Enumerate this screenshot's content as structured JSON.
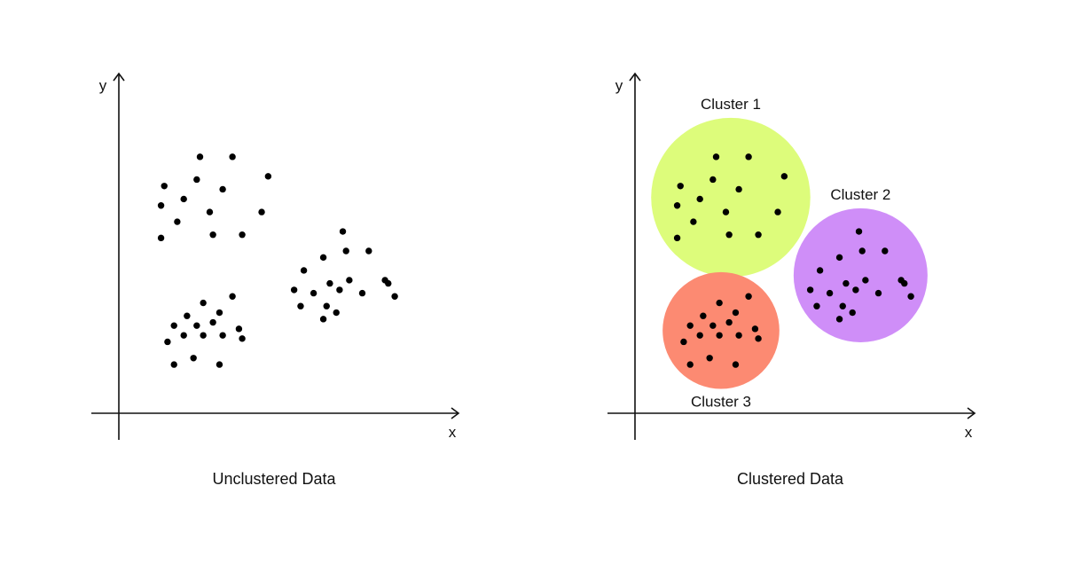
{
  "chart_data": [
    {
      "type": "scatter",
      "title": "Unclustered Data",
      "xlabel": "x",
      "ylabel": "y",
      "grid": false,
      "xlim": [
        0,
        100
      ],
      "ylim": [
        0,
        100
      ],
      "series": [
        {
          "points": [
            [
              25,
              79
            ],
            [
              35,
              79
            ],
            [
              14,
              70
            ],
            [
              24,
              72
            ],
            [
              32,
              69
            ],
            [
              46,
              73
            ],
            [
              13,
              64
            ],
            [
              20,
              66
            ],
            [
              28,
              62
            ],
            [
              44,
              62
            ],
            [
              18,
              59
            ],
            [
              29,
              55
            ],
            [
              38,
              55
            ],
            [
              13,
              54
            ],
            [
              69,
              56
            ],
            [
              63,
              48
            ],
            [
              70,
              50
            ],
            [
              77,
              50
            ],
            [
              57,
              44
            ],
            [
              65,
              40
            ],
            [
              71,
              41
            ],
            [
              82,
              41
            ],
            [
              54,
              38
            ],
            [
              60,
              37
            ],
            [
              68,
              38
            ],
            [
              75,
              37
            ],
            [
              83,
              40
            ],
            [
              85,
              36
            ],
            [
              56,
              33
            ],
            [
              64,
              33
            ],
            [
              67,
              31
            ],
            [
              63,
              29
            ],
            [
              35,
              36
            ],
            [
              26,
              34
            ],
            [
              31,
              31
            ],
            [
              21,
              30
            ],
            [
              29,
              28
            ],
            [
              17,
              27
            ],
            [
              24,
              27
            ],
            [
              37,
              26
            ],
            [
              20,
              24
            ],
            [
              26,
              24
            ],
            [
              32,
              24
            ],
            [
              38,
              23
            ],
            [
              15,
              22
            ],
            [
              17,
              15
            ],
            [
              23,
              17
            ],
            [
              31,
              15
            ]
          ]
        }
      ]
    },
    {
      "type": "scatter",
      "title": "Clustered Data",
      "xlabel": "x",
      "ylabel": "y",
      "grid": false,
      "xlim": [
        0,
        100
      ],
      "ylim": [
        0,
        100
      ],
      "series": [
        {
          "name": "Cluster 1",
          "color": "#ddfc7b",
          "points": [
            [
              25,
              79
            ],
            [
              35,
              79
            ],
            [
              14,
              70
            ],
            [
              24,
              72
            ],
            [
              32,
              69
            ],
            [
              46,
              73
            ],
            [
              13,
              64
            ],
            [
              20,
              66
            ],
            [
              28,
              62
            ],
            [
              44,
              62
            ],
            [
              18,
              59
            ],
            [
              29,
              55
            ],
            [
              38,
              55
            ],
            [
              13,
              54
            ]
          ]
        },
        {
          "name": "Cluster 2",
          "color": "#cf8ef8",
          "points": [
            [
              69,
              56
            ],
            [
              63,
              48
            ],
            [
              70,
              50
            ],
            [
              77,
              50
            ],
            [
              57,
              44
            ],
            [
              65,
              40
            ],
            [
              71,
              41
            ],
            [
              82,
              41
            ],
            [
              54,
              38
            ],
            [
              60,
              37
            ],
            [
              68,
              38
            ],
            [
              75,
              37
            ],
            [
              83,
              40
            ],
            [
              85,
              36
            ],
            [
              56,
              33
            ],
            [
              64,
              33
            ],
            [
              67,
              31
            ],
            [
              63,
              29
            ]
          ]
        },
        {
          "name": "Cluster 3",
          "color": "#fc8a72",
          "points": [
            [
              35,
              36
            ],
            [
              26,
              34
            ],
            [
              31,
              31
            ],
            [
              21,
              30
            ],
            [
              29,
              28
            ],
            [
              17,
              27
            ],
            [
              24,
              27
            ],
            [
              37,
              26
            ],
            [
              20,
              24
            ],
            [
              26,
              24
            ],
            [
              32,
              24
            ],
            [
              38,
              23
            ],
            [
              15,
              22
            ],
            [
              17,
              15
            ],
            [
              23,
              17
            ],
            [
              31,
              15
            ]
          ]
        }
      ]
    }
  ]
}
